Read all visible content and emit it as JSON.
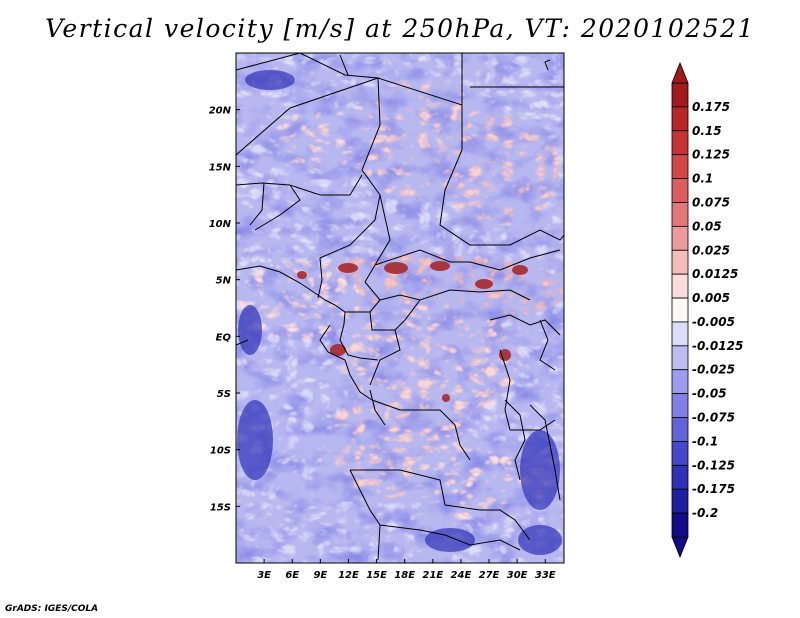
{
  "title": "Vertical velocity [m/s] at 250hPa, VT: 2020102521",
  "credit": "GrADS: IGES/COLA",
  "map": {
    "lon_range": [
      0,
      35
    ],
    "lat_range": [
      -20,
      25
    ],
    "x_ticks": [
      {
        "value": 3,
        "label": "3E"
      },
      {
        "value": 6,
        "label": "6E"
      },
      {
        "value": 9,
        "label": "9E"
      },
      {
        "value": 12,
        "label": "12E"
      },
      {
        "value": 15,
        "label": "15E"
      },
      {
        "value": 18,
        "label": "18E"
      },
      {
        "value": 21,
        "label": "21E"
      },
      {
        "value": 24,
        "label": "24E"
      },
      {
        "value": 27,
        "label": "27E"
      },
      {
        "value": 30,
        "label": "30E"
      },
      {
        "value": 33,
        "label": "33E"
      }
    ],
    "y_ticks": [
      {
        "value": 20,
        "label": "20N"
      },
      {
        "value": 15,
        "label": "15N"
      },
      {
        "value": 10,
        "label": "10N"
      },
      {
        "value": 5,
        "label": "5N"
      },
      {
        "value": 0,
        "label": "EQ"
      },
      {
        "value": -5,
        "label": "5S"
      },
      {
        "value": -10,
        "label": "10S"
      },
      {
        "value": -15,
        "label": "15S"
      }
    ]
  },
  "colorbar": {
    "labels": [
      "0.175",
      "0.15",
      "0.125",
      "0.1",
      "0.075",
      "0.05",
      "0.025",
      "0.0125",
      "0.005",
      "-0.005",
      "-0.0125",
      "-0.025",
      "-0.05",
      "-0.075",
      "-0.1",
      "-0.125",
      "-0.175",
      "-0.2"
    ],
    "colors": [
      "#a11b1b",
      "#b82626",
      "#c83434",
      "#d44848",
      "#dc5d5d",
      "#e47878",
      "#ec9a9a",
      "#f4bcbc",
      "#fbdcdc",
      "#fbf8f8",
      "#dcdcf8",
      "#bcbcf2",
      "#9d9df0",
      "#8080e6",
      "#6363da",
      "#4747cc",
      "#3030b8",
      "#1e1ea0",
      "#120a88"
    ]
  }
}
